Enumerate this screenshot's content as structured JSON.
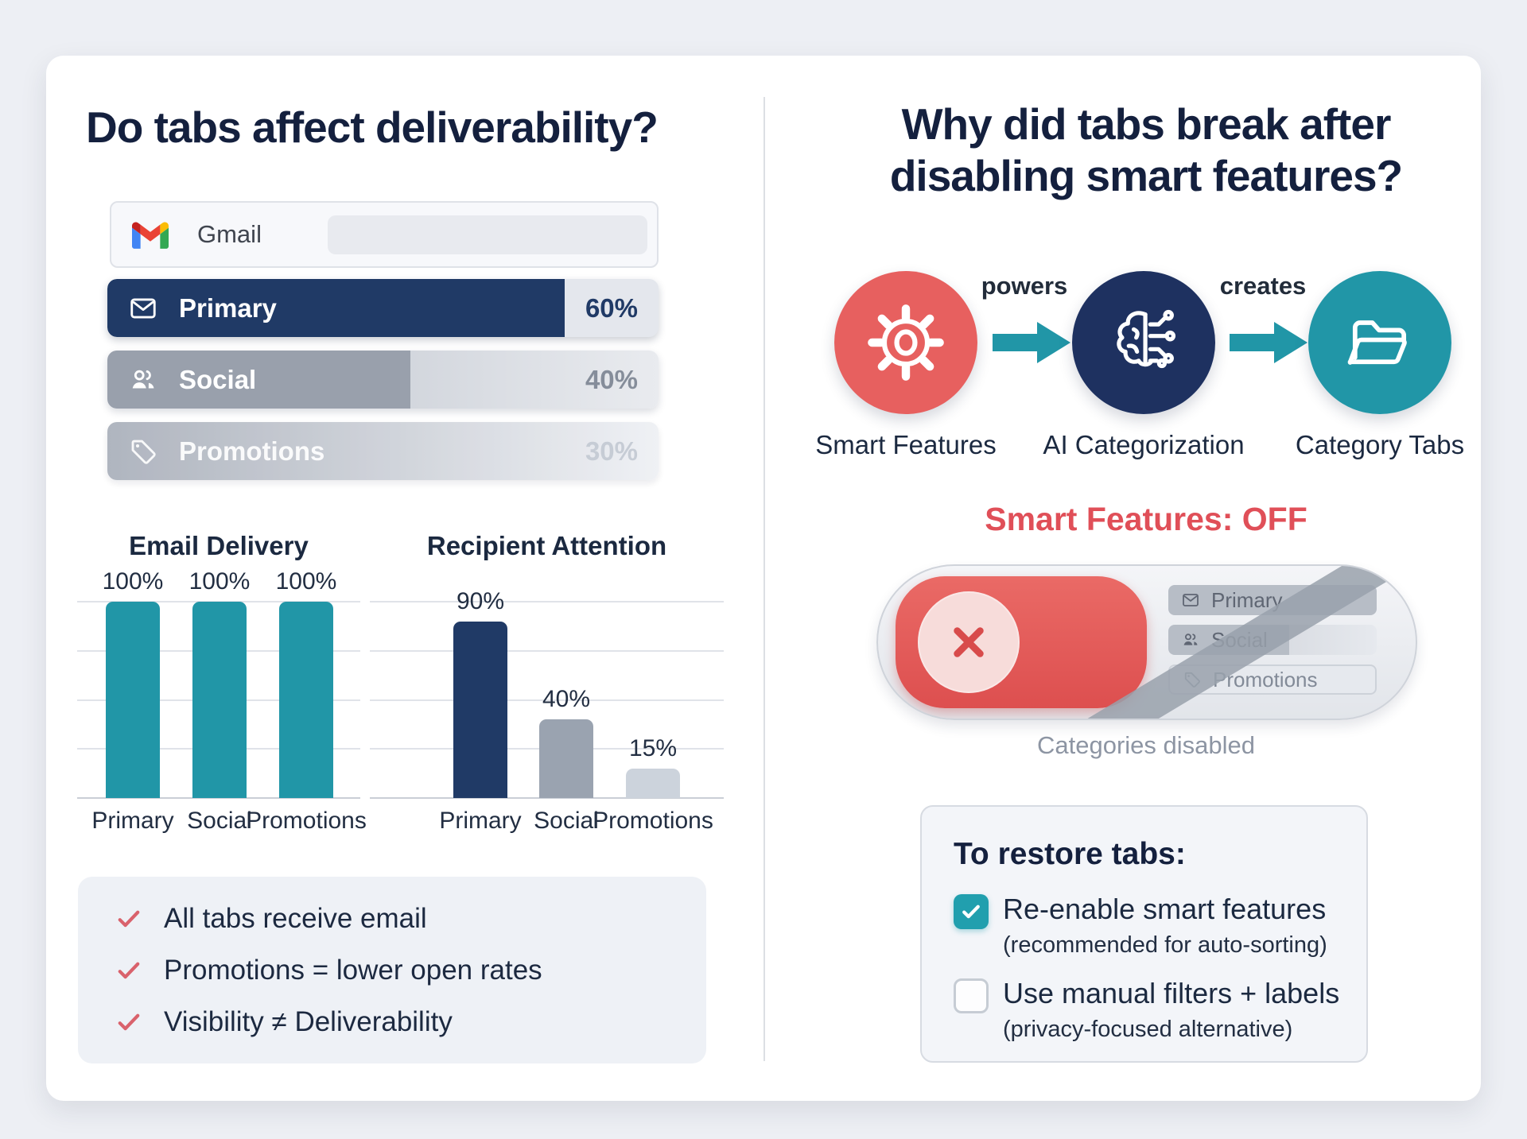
{
  "colors": {
    "background": "#edeff4",
    "card": "#ffffff",
    "navy": "#203a66",
    "navy_dark": "#1e3160",
    "teal": "#2196a7",
    "red": "#e7605f",
    "off_red": "#e04f58",
    "check_red": "#d9626c",
    "gray_fill": "#99a0ac",
    "text_dark": "#14203e"
  },
  "left_panel": {
    "title": "Do tabs affect deliverability?",
    "gmail_header": {
      "app_name": "Gmail"
    },
    "tabs": [
      {
        "label": "Primary",
        "value": "60%",
        "pct": 60,
        "fill_pct": 83,
        "icon": "mail-icon"
      },
      {
        "label": "Social",
        "value": "40%",
        "pct": 40,
        "fill_pct": 55,
        "icon": "people-icon"
      },
      {
        "label": "Promotions",
        "value": "30%",
        "pct": 30,
        "fill_pct": 100,
        "icon": "tag-icon"
      }
    ],
    "checklist": {
      "items": [
        "All tabs receive email",
        "Promotions = lower open rates",
        "Visibility ≠ Deliverability"
      ]
    }
  },
  "chart_data": [
    {
      "type": "bar",
      "title": "Email Delivery",
      "categories": [
        "Primary",
        "Social",
        "Promotions"
      ],
      "values": [
        100,
        100,
        100
      ],
      "unit": "%",
      "xlabel": "",
      "ylabel": "",
      "ylim": [
        0,
        100
      ],
      "grid": true,
      "legend": "none",
      "bar_colors": [
        "#2196a7",
        "#2196a7",
        "#2196a7"
      ]
    },
    {
      "type": "bar",
      "title": "Recipient Attention",
      "categories": [
        "Primary",
        "Social",
        "Promotions"
      ],
      "values": [
        90,
        40,
        15
      ],
      "unit": "%",
      "xlabel": "",
      "ylabel": "",
      "ylim": [
        0,
        100
      ],
      "grid": true,
      "legend": "none",
      "bar_colors": [
        "#203a66",
        "#9aa3b0",
        "#ccd3dc"
      ]
    }
  ],
  "right_panel": {
    "title_lines": [
      "Why did tabs break after",
      "disabling smart features?"
    ],
    "flow": {
      "nodes": [
        {
          "label": "Smart Features",
          "icon": "gear-icon",
          "color": "#e7605f"
        },
        {
          "label": "AI Categorization",
          "icon": "ai-brain-icon",
          "color": "#1e3160"
        },
        {
          "label": "Category Tabs",
          "icon": "folder-icon",
          "color": "#2196a7"
        }
      ],
      "connectors": [
        "powers",
        "creates"
      ]
    },
    "toggle_section": {
      "status_label": "Smart Features: OFF",
      "tabs": [
        "Primary",
        "Social",
        "Promotions"
      ],
      "caption": "Categories disabled"
    },
    "restore_box": {
      "title": "To restore tabs:",
      "options": [
        {
          "label": "Re-enable smart features",
          "note": "(recommended for auto-sorting)",
          "checked": true
        },
        {
          "label": "Use manual filters + labels",
          "note": "(privacy-focused alternative)",
          "checked": false
        }
      ]
    }
  }
}
